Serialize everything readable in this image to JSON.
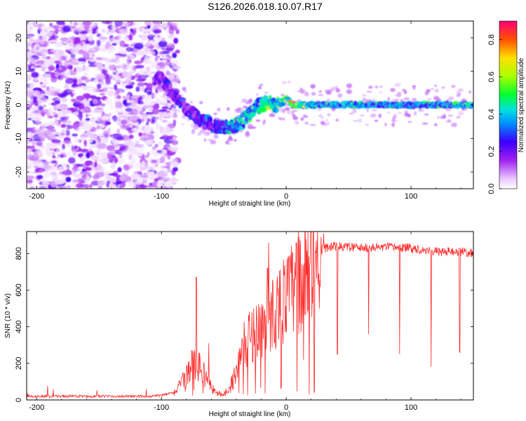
{
  "title": "S126.2026.018.10.07.R17",
  "chart_data": [
    {
      "type": "heatmap",
      "name": "spectrogram",
      "xlabel": "Height of straight line (km)",
      "ylabel": "Frequency (Hz)",
      "xlim": [
        -208,
        150
      ],
      "ylim": [
        -25,
        25
      ],
      "xticks": [
        -200,
        -100,
        0,
        100
      ],
      "xtick_labels": [
        "-200",
        "-100",
        "0",
        "100"
      ],
      "yticks": [
        20,
        10,
        0,
        -10,
        -20
      ],
      "ytick_labels": [
        "20",
        "10",
        "0",
        "-10",
        "-20"
      ],
      "colorbar": {
        "label": "Normalized spectral amplitude",
        "range": [
          0.0,
          0.9
        ],
        "ticks": [
          0.0,
          0.2,
          0.4,
          0.6,
          0.8
        ],
        "tick_labels": [
          "0.0",
          "0.2",
          "0.4",
          "0.6",
          "0.8"
        ]
      },
      "ridge": {
        "x": [
          -100,
          -90,
          -80,
          -70,
          -60,
          -50,
          -40,
          -35,
          -30,
          -25,
          -20,
          -15,
          -10,
          -5,
          0,
          5,
          10,
          20,
          40,
          60,
          80,
          100,
          120,
          150
        ],
        "freq": [
          8,
          3,
          -1,
          -4,
          -6,
          -7,
          -6,
          -5,
          -3,
          -1,
          0,
          1,
          0,
          0,
          2,
          0,
          0,
          0,
          0,
          0,
          0,
          0,
          0,
          0
        ],
        "amplitude": [
          0.25,
          0.3,
          0.3,
          0.3,
          0.35,
          0.4,
          0.5,
          0.55,
          0.55,
          0.6,
          0.65,
          0.7,
          0.6,
          0.6,
          0.7,
          0.75,
          0.85,
          0.6,
          0.55,
          0.55,
          0.55,
          0.55,
          0.55,
          0.6
        ]
      },
      "noise_region_x": [
        -208,
        -95
      ]
    },
    {
      "type": "line",
      "name": "snr",
      "xlabel": "Height of straight line (km)",
      "ylabel": "SNR (10 * v/v)",
      "xlim": [
        -208,
        150
      ],
      "ylim": [
        0,
        920
      ],
      "xticks": [
        -200,
        -100,
        0,
        100
      ],
      "xtick_labels": [
        "-200",
        "-100",
        "0",
        "100"
      ],
      "yticks": [
        0,
        200,
        400,
        600,
        800
      ],
      "ytick_labels": [
        "0",
        "200",
        "400",
        "600",
        "800"
      ],
      "color": "#ff2a2a",
      "envelope": {
        "x": [
          -208,
          -150,
          -110,
          -100,
          -90,
          -85,
          -80,
          -75,
          -70,
          -65,
          -60,
          -55,
          -50,
          -45,
          -40,
          -35,
          -30,
          -25,
          -20,
          -15,
          -10,
          -5,
          0,
          5,
          10,
          15,
          20,
          25,
          30,
          40,
          50,
          60,
          80,
          100,
          120,
          140,
          150
        ],
        "y": [
          20,
          20,
          20,
          25,
          40,
          70,
          120,
          180,
          170,
          120,
          60,
          30,
          30,
          60,
          150,
          280,
          340,
          380,
          400,
          440,
          480,
          520,
          560,
          600,
          650,
          690,
          740,
          790,
          830,
          840,
          835,
          830,
          835,
          830,
          810,
          810,
          800
        ]
      },
      "dropouts": [
        {
          "x": 14,
          "y": 220
        },
        {
          "x": 41,
          "y": 250
        },
        {
          "x": 66,
          "y": 360
        },
        {
          "x": 91,
          "y": 250
        },
        {
          "x": 116,
          "y": 180
        },
        {
          "x": 139,
          "y": 260
        }
      ],
      "spikes": [
        {
          "x": -72,
          "y": 670
        },
        {
          "x": -62,
          "y": 310
        },
        {
          "x": -15,
          "y": 720
        },
        {
          "x": -14,
          "y": 860
        },
        {
          "x": 30,
          "y": 910
        }
      ]
    }
  ]
}
